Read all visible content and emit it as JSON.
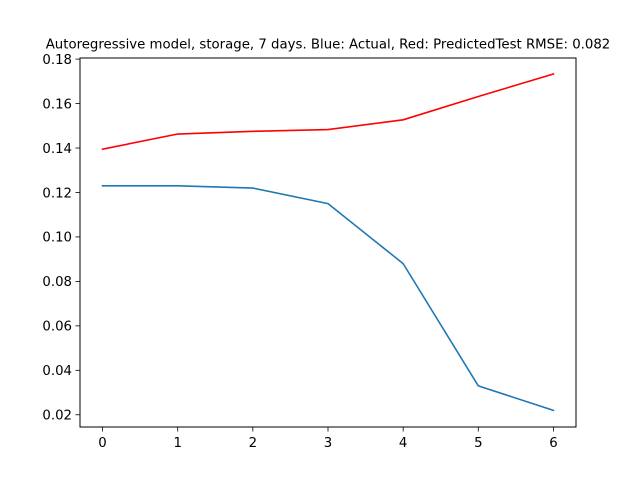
{
  "chart_data": {
    "type": "line",
    "title": "Autoregressive model, storage, 7 days. Blue: Actual, Red: PredictedTest RMSE: 0.082",
    "xlabel": "",
    "ylabel": "",
    "x": [
      0,
      1,
      2,
      3,
      4,
      5,
      6
    ],
    "xticks": [
      "0",
      "1",
      "2",
      "3",
      "4",
      "5",
      "6"
    ],
    "yticks": [
      "0.02",
      "0.04",
      "0.06",
      "0.08",
      "0.10",
      "0.12",
      "0.14",
      "0.16",
      "0.18"
    ],
    "xlim": [
      -0.3,
      6.3
    ],
    "ylim": [
      0.0145,
      0.1805
    ],
    "grid": false,
    "series": [
      {
        "key": "actual",
        "color": "#1f77b4",
        "values": [
          0.123,
          0.123,
          0.122,
          0.115,
          0.088,
          0.033,
          0.022
        ]
      },
      {
        "key": "predicted",
        "color": "#ff0000",
        "values": [
          0.1395,
          0.1463,
          0.1475,
          0.1483,
          0.1527,
          0.1632,
          0.1733
        ]
      }
    ]
  }
}
